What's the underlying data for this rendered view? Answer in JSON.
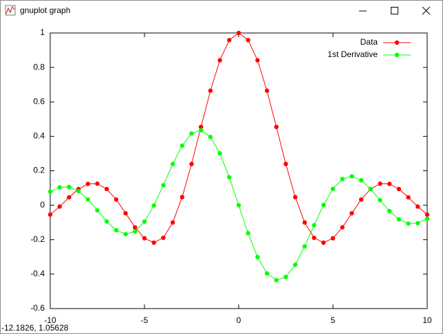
{
  "window": {
    "title": "gnuplot graph",
    "status": "-12.1826, 1.05628"
  },
  "chart_data": {
    "type": "line",
    "x": [
      -10,
      -9.5,
      -9,
      -8.5,
      -8,
      -7.5,
      -7,
      -6.5,
      -6,
      -5.5,
      -5,
      -4.5,
      -4,
      -3.5,
      -3,
      -2.5,
      -2,
      -1.5,
      -1,
      -0.5,
      0,
      0.5,
      1,
      1.5,
      2,
      2.5,
      3,
      3.5,
      4,
      4.5,
      5,
      5.5,
      6,
      6.5,
      7,
      7.5,
      8,
      8.5,
      9,
      9.5,
      10
    ],
    "series": [
      {
        "name": "Data",
        "color": "#ff0000",
        "values": [
          -0.0544,
          -0.0079,
          0.0458,
          0.0939,
          0.1237,
          0.1251,
          0.0939,
          0.0331,
          -0.0466,
          -0.1283,
          -0.1918,
          -0.2172,
          -0.1892,
          -0.1002,
          0.047,
          0.2394,
          0.4546,
          0.665,
          0.8415,
          0.9589,
          1,
          0.9589,
          0.8415,
          0.665,
          0.4546,
          0.2394,
          0.047,
          -0.1002,
          -0.1892,
          -0.2172,
          -0.1918,
          -0.1283,
          -0.0466,
          0.0331,
          0.0939,
          0.1251,
          0.1237,
          0.0939,
          0.0458,
          -0.0079,
          -0.0544
        ]
      },
      {
        "name": "1st Derivative",
        "color": "#00ff00",
        "values": [
          0.0785,
          0.1042,
          0.1063,
          0.0819,
          0.0337,
          -0.0295,
          -0.0943,
          -0.1451,
          -0.1678,
          -0.1522,
          -0.0951,
          -0.0015,
          0.1161,
          0.239,
          0.3457,
          0.4163,
          0.4354,
          0.3962,
          0.3012,
          0.1625,
          0,
          -0.1625,
          -0.3012,
          -0.3962,
          -0.4354,
          -0.4163,
          -0.3457,
          -0.239,
          -0.1161,
          0.0015,
          0.0951,
          0.1522,
          0.1678,
          0.1451,
          0.0943,
          0.0295,
          -0.0337,
          -0.0819,
          -0.1063,
          -0.1042,
          -0.0785
        ]
      }
    ],
    "xlim": [
      -10,
      10
    ],
    "xticks": [
      -10,
      -5,
      0,
      5,
      10
    ],
    "ylim": [
      -0.6,
      1
    ],
    "yticks": [
      -0.6,
      -0.4,
      -0.2,
      0,
      0.2,
      0.4,
      0.6,
      0.8,
      1
    ],
    "grid": false,
    "legend": "top-right"
  }
}
